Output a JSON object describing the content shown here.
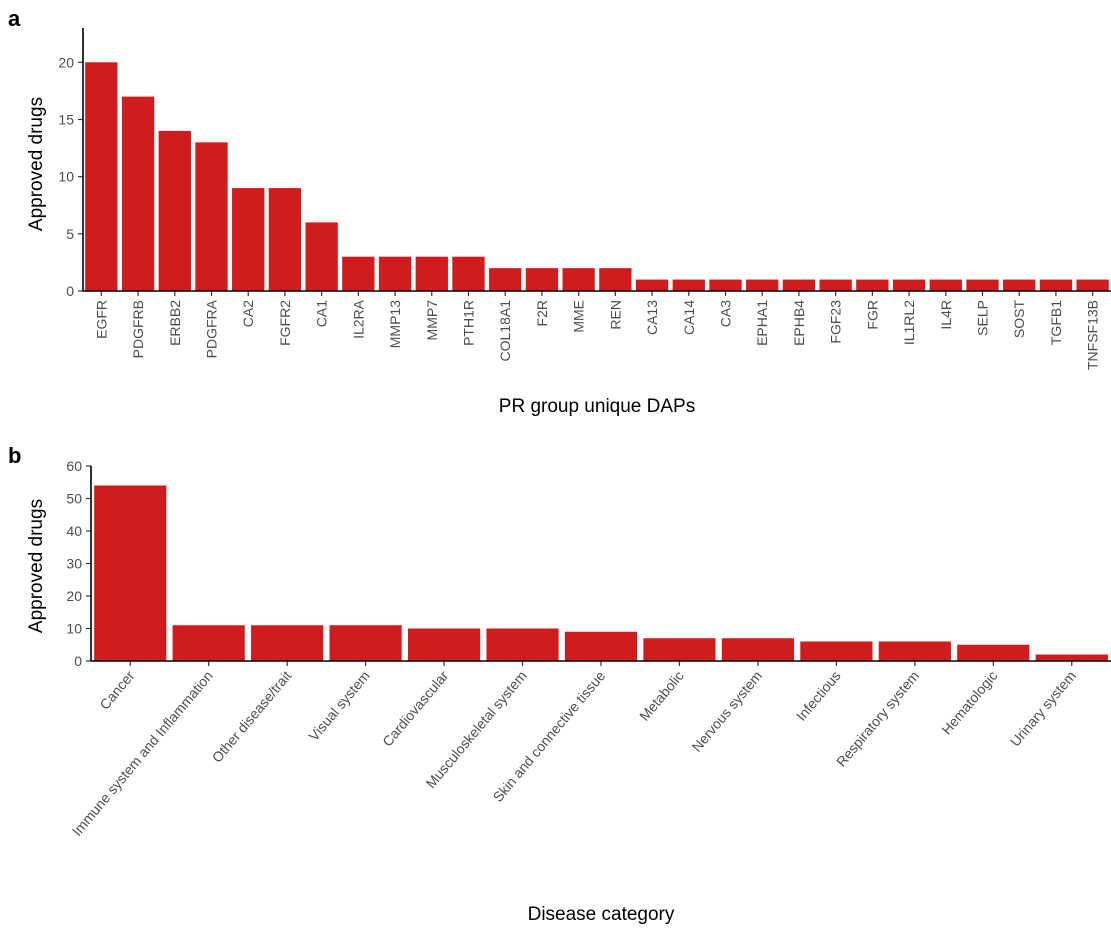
{
  "bar_color": "#d01c1f",
  "chart_data": [
    {
      "type": "bar",
      "panel_label": "a",
      "xlabel": "PR group unique DAPs",
      "ylabel": "Approved drugs",
      "ylim": [
        0,
        23
      ],
      "yticks": [
        0,
        5,
        10,
        15,
        20
      ],
      "grid": false,
      "categories": [
        "EGFR",
        "PDGFRB",
        "ERBB2",
        "PDGFRA",
        "CA2",
        "FGFR2",
        "CA1",
        "IL2RA",
        "MMP13",
        "MMP7",
        "PTH1R",
        "COL18A1",
        "F2R",
        "MME",
        "REN",
        "CA13",
        "CA14",
        "CA3",
        "EPHA1",
        "EPHB4",
        "FGF23",
        "FGR",
        "IL1RL2",
        "IL4R",
        "SELP",
        "SOST",
        "TGFB1",
        "TNFSF13B"
      ],
      "values": [
        20,
        17,
        14,
        13,
        9,
        9,
        6,
        3,
        3,
        3,
        3,
        2,
        2,
        2,
        2,
        1,
        1,
        1,
        1,
        1,
        1,
        1,
        1,
        1,
        1,
        1,
        1,
        1
      ]
    },
    {
      "type": "bar",
      "panel_label": "b",
      "xlabel": "Disease category",
      "ylabel": "Approved drugs",
      "ylim": [
        0,
        60
      ],
      "yticks": [
        0,
        10,
        20,
        30,
        40,
        50,
        60
      ],
      "grid": false,
      "categories": [
        "Cancer",
        "Immune system and Inflammation",
        "Other disease/trait",
        "Visual system",
        "Cardiovascular",
        "Musculoskeletal system",
        "Skin and connective tissue",
        "Metabolic",
        "Nervous system",
        "Infectious",
        "Respiratory system",
        "Hematologic",
        "Urinary system"
      ],
      "values": [
        54,
        11,
        11,
        11,
        10,
        10,
        9,
        7,
        7,
        6,
        6,
        5,
        2
      ]
    }
  ]
}
